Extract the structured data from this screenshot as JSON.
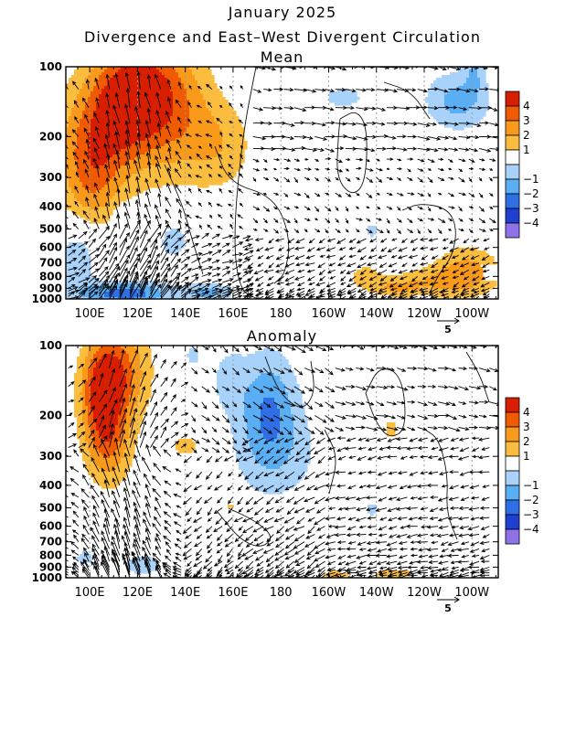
{
  "figure": {
    "title": "January 2025",
    "subtitle": "Divergence and East–West Divergent Circulation"
  },
  "colorbar": {
    "labels": [
      "4",
      "3",
      "2",
      "1",
      "−1",
      "−2",
      "−3",
      "−4"
    ],
    "colors": [
      "#d81e00",
      "#f05a00",
      "#f99a1a",
      "#fbbd3e",
      "#ffffff",
      "#a8d2f9",
      "#5aaef4",
      "#2e6fe6",
      "#1e3fd0",
      "#8f72e8"
    ]
  },
  "vector_reference": {
    "label": "5",
    "value": 5
  },
  "chart_data": [
    {
      "type": "heatmap",
      "panel_title": "Mean",
      "x_ticks": [
        "100E",
        "120E",
        "140E",
        "160E",
        "180",
        "160W",
        "140W",
        "120W",
        "100W"
      ],
      "y_ticks": [
        "100",
        "200",
        "300",
        "400",
        "500",
        "600",
        "700",
        "800",
        "900",
        "1000"
      ],
      "xlim_deg_east": [
        90,
        271
      ],
      "ylim_hPa": [
        1000,
        100
      ],
      "y_scale": "log",
      "blobs": [
        {
          "lon": 118,
          "p": 130,
          "rlon": 16,
          "rp": 0.55,
          "v": 4.3
        },
        {
          "lon": 104,
          "p": 200,
          "rlon": 18,
          "rp": 0.6,
          "v": 2.9
        },
        {
          "lon": 136,
          "p": 150,
          "rlon": 16,
          "rp": 0.7,
          "v": 2.5
        },
        {
          "lon": 155,
          "p": 220,
          "rlon": 14,
          "rp": 0.45,
          "v": 1.6
        },
        {
          "lon": 100,
          "p": 330,
          "rlon": 12,
          "rp": 0.5,
          "v": 1.8
        },
        {
          "lon": 115,
          "p": 950,
          "rlon": 20,
          "rp": 0.12,
          "v": -3.6
        },
        {
          "lon": 150,
          "p": 940,
          "rlon": 10,
          "rp": 0.1,
          "v": -2.2
        },
        {
          "lon": 95,
          "p": 650,
          "rlon": 9,
          "rp": 0.35,
          "v": -1.8
        },
        {
          "lon": 135,
          "p": 560,
          "rlon": 7,
          "rp": 0.2,
          "v": -1.6
        },
        {
          "lon": 115,
          "p": 430,
          "rlon": 5,
          "rp": 0.1,
          "v": -1.3
        },
        {
          "lon": 215,
          "p": 800,
          "rlon": 7,
          "rp": 0.12,
          "v": 1.5
        },
        {
          "lon": 258,
          "p": 760,
          "rlon": 14,
          "rp": 0.25,
          "v": 2.4
        },
        {
          "lon": 240,
          "p": 850,
          "rlon": 18,
          "rp": 0.14,
          "v": 1.6
        },
        {
          "lon": 227,
          "p": 900,
          "rlon": 10,
          "rp": 0.08,
          "v": 1.4
        },
        {
          "lon": 254,
          "p": 140,
          "rlon": 14,
          "rp": 0.3,
          "v": -2.4
        },
        {
          "lon": 261,
          "p": 100,
          "rlon": 4,
          "rp": 0.25,
          "v": -1.6
        },
        {
          "lon": 206,
          "p": 135,
          "rlon": 10,
          "rp": 0.12,
          "v": -1.5
        },
        {
          "lon": 218,
          "p": 510,
          "rlon": 3,
          "rp": 0.08,
          "v": -1.5
        }
      ]
    },
    {
      "type": "heatmap",
      "panel_title": "Anomaly",
      "x_ticks": [
        "100E",
        "120E",
        "140E",
        "160E",
        "180",
        "160W",
        "140W",
        "120W",
        "100W"
      ],
      "y_ticks": [
        "100",
        "200",
        "300",
        "400",
        "500",
        "600",
        "700",
        "800",
        "900",
        "1000"
      ],
      "xlim_deg_east": [
        90,
        271
      ],
      "ylim_hPa": [
        1000,
        100
      ],
      "y_scale": "log",
      "blobs": [
        {
          "lon": 105,
          "p": 160,
          "rlon": 9,
          "rp": 0.5,
          "v": 4.2
        },
        {
          "lon": 114,
          "p": 130,
          "rlon": 12,
          "rp": 0.5,
          "v": 2.8
        },
        {
          "lon": 108,
          "p": 280,
          "rlon": 10,
          "rp": 0.4,
          "v": 2.2
        },
        {
          "lon": 140,
          "p": 270,
          "rlon": 6,
          "rp": 0.12,
          "v": 1.6
        },
        {
          "lon": 159,
          "p": 490,
          "rlon": 2.5,
          "rp": 0.06,
          "v": 1.5
        },
        {
          "lon": 226,
          "p": 230,
          "rlon": 3,
          "rp": 0.12,
          "v": 1.5
        },
        {
          "lon": 203,
          "p": 970,
          "rlon": 8,
          "rp": 0.05,
          "v": 1.5
        },
        {
          "lon": 227,
          "p": 960,
          "rlon": 9,
          "rp": 0.05,
          "v": 1.8
        },
        {
          "lon": 175,
          "p": 180,
          "rlon": 12,
          "rp": 0.55,
          "v": -2.7
        },
        {
          "lon": 178,
          "p": 300,
          "rlon": 20,
          "rp": 0.5,
          "v": -1.4
        },
        {
          "lon": 158,
          "p": 140,
          "rlon": 8,
          "rp": 0.35,
          "v": -1.3
        },
        {
          "lon": 143,
          "p": 110,
          "rlon": 5,
          "rp": 0.15,
          "v": -1.2
        },
        {
          "lon": 98,
          "p": 820,
          "rlon": 5,
          "rp": 0.1,
          "v": -1.4
        },
        {
          "lon": 122,
          "p": 880,
          "rlon": 10,
          "rp": 0.13,
          "v": -1.5
        },
        {
          "lon": 218,
          "p": 510,
          "rlon": 3,
          "rp": 0.08,
          "v": -1.5
        }
      ]
    }
  ]
}
